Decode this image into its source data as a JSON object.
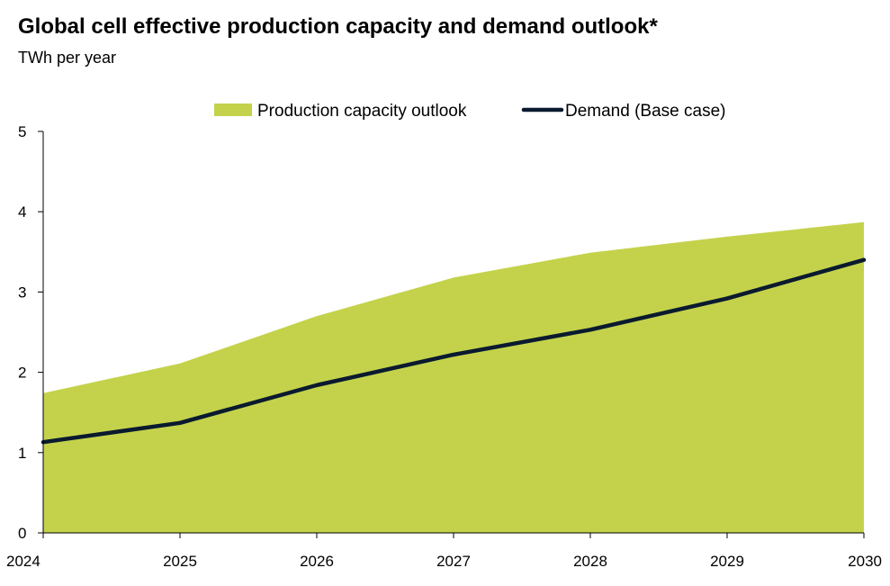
{
  "chart_data": {
    "type": "area",
    "title": "Global cell effective production capacity and demand outlook*",
    "subtitle": "TWh per year",
    "xlabel": "",
    "ylabel": "",
    "categories": [
      "2024",
      "2025",
      "2026",
      "2027",
      "2028",
      "2029",
      "2030"
    ],
    "ylim": [
      0,
      5
    ],
    "yticks": [
      "0",
      "1",
      "2",
      "3",
      "4",
      "5"
    ],
    "grid": false,
    "legend_position": "top-center",
    "series": [
      {
        "name": "Production capacity outlook",
        "kind": "area",
        "color": "#c4d24b",
        "values": [
          1.74,
          2.11,
          2.7,
          3.18,
          3.49,
          3.69,
          3.87
        ]
      },
      {
        "name": "Demand (Base case)",
        "kind": "line",
        "color": "#0a1a2f",
        "values": [
          1.13,
          1.37,
          1.84,
          2.22,
          2.53,
          2.92,
          3.4
        ]
      }
    ]
  }
}
